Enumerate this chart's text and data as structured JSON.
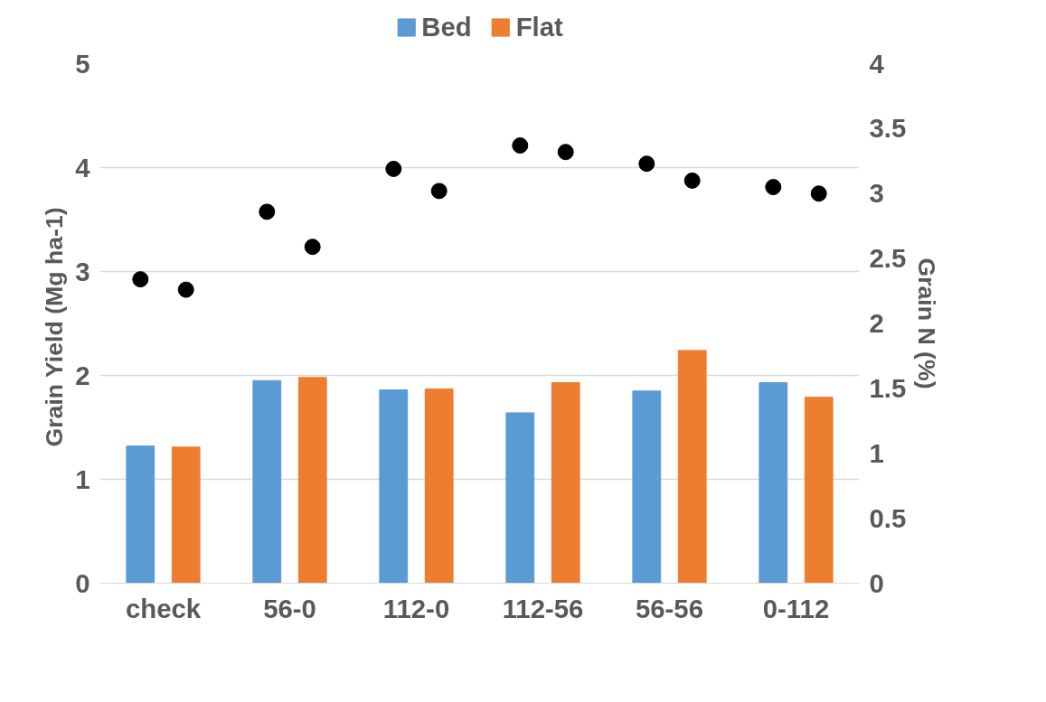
{
  "chart_data": {
    "type": "bar",
    "ylabel": "Grain Yield  (Mg ha-1)",
    "y2label": "Grain N (%)",
    "categories": [
      "check",
      "56-0",
      "112-0",
      "112-56",
      "56-56",
      "0-112"
    ],
    "series": [
      {
        "name": "Bed",
        "color": "#5b9bd5",
        "values": [
          1.32,
          1.95,
          1.86,
          1.64,
          1.85,
          1.93
        ]
      },
      {
        "name": "Flat",
        "color": "#ed7d31",
        "values": [
          1.31,
          1.98,
          1.87,
          1.93,
          2.24,
          1.79
        ]
      },
      {
        "type": "scatter",
        "axis": "y2",
        "color": "#000000",
        "values": [
          2.34,
          2.86,
          3.19,
          3.37,
          3.23,
          3.05
        ]
      },
      {
        "type": "scatter",
        "axis": "y2",
        "color": "#000000",
        "values": [
          2.26,
          2.59,
          3.02,
          3.32,
          3.1,
          3.0
        ]
      }
    ],
    "ylim": [
      0,
      5
    ],
    "yticks": [
      0,
      1,
      2,
      3,
      4,
      5
    ],
    "y2lim": [
      0,
      4
    ],
    "y2ticks": [
      0,
      0.5,
      1,
      1.5,
      2,
      2.5,
      3,
      3.5,
      4
    ],
    "grid": "y",
    "legend": "top",
    "marker": "circle"
  }
}
